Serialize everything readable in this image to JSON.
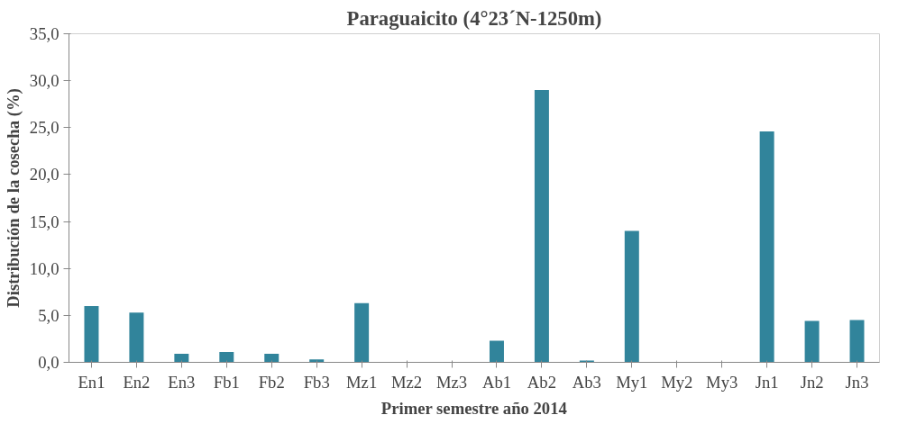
{
  "chart_data": {
    "type": "bar",
    "title": "Paraguaicito (4°23´N-1250m)",
    "xlabel": "Primer semestre año 2014",
    "ylabel": "Distribución de la cosecha (%)",
    "categories": [
      "En1",
      "En2",
      "En3",
      "Fb1",
      "Fb2",
      "Fb3",
      "Mz1",
      "Mz2",
      "Mz3",
      "Ab1",
      "Ab2",
      "Ab3",
      "My1",
      "My2",
      "My3",
      "Jn1",
      "Jn2",
      "Jn3"
    ],
    "values": [
      6.0,
      5.3,
      0.9,
      1.1,
      0.9,
      0.3,
      6.3,
      0,
      0,
      2.3,
      29.0,
      0.2,
      14.0,
      0,
      0,
      24.6,
      4.4,
      4.5
    ],
    "color": "#31849b",
    "ylim": [
      0,
      35
    ],
    "yticks": [
      {
        "value": 0,
        "label": "0,0"
      },
      {
        "value": 5,
        "label": "5,0"
      },
      {
        "value": 10,
        "label": "10,0"
      },
      {
        "value": 15,
        "label": "15,0"
      },
      {
        "value": 20,
        "label": "20,0"
      },
      {
        "value": 25,
        "label": "25,0"
      },
      {
        "value": 30,
        "label": "30,0"
      },
      {
        "value": 35,
        "label": "35,0"
      }
    ],
    "grid": false
  }
}
